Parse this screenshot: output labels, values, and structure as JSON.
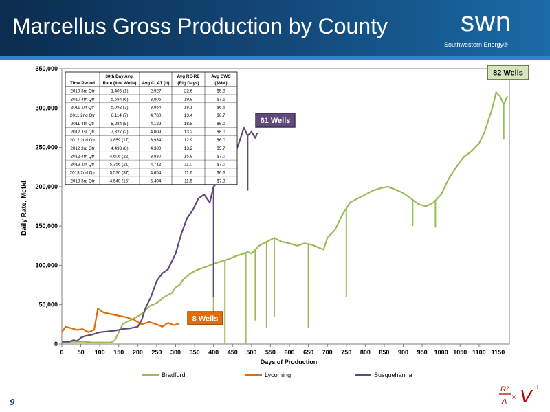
{
  "slide": {
    "title": "Marcellus Gross Production by County",
    "logo_text": "swn",
    "logo_subtext": "Southwestern Energy®",
    "page_number": "9",
    "footer_logo_text": "R²/A × V⁺"
  },
  "chart_data": {
    "type": "line",
    "title": "",
    "xlabel": "Days of Production",
    "ylabel": "Daily Rate, Mcf/d",
    "xlim": [
      0,
      1180
    ],
    "ylim": [
      0,
      350000
    ],
    "x_ticks": [
      0,
      50,
      100,
      150,
      200,
      250,
      300,
      350,
      400,
      450,
      500,
      550,
      600,
      650,
      700,
      750,
      800,
      850,
      900,
      950,
      1000,
      1050,
      1100,
      1150
    ],
    "y_ticks": [
      0,
      50000,
      100000,
      150000,
      200000,
      250000,
      300000,
      350000
    ],
    "y_tick_labels": [
      "0",
      "50,000",
      "100,000",
      "150,000",
      "200,000",
      "250,000",
      "300,000",
      "350,000"
    ],
    "legend_position": "bottom",
    "series": [
      {
        "name": "Bradford",
        "color": "#9bbb59",
        "points": [
          [
            0,
            3000
          ],
          [
            20,
            3000
          ],
          [
            40,
            3000
          ],
          [
            60,
            3000
          ],
          [
            80,
            2000
          ],
          [
            100,
            2000
          ],
          [
            130,
            2000
          ],
          [
            140,
            5000
          ],
          [
            150,
            15000
          ],
          [
            160,
            25000
          ],
          [
            170,
            28000
          ],
          [
            180,
            30000
          ],
          [
            200,
            35000
          ],
          [
            215,
            40000
          ],
          [
            230,
            48000
          ],
          [
            250,
            52000
          ],
          [
            270,
            60000
          ],
          [
            290,
            65000
          ],
          [
            300,
            72000
          ],
          [
            310,
            75000
          ],
          [
            320,
            82000
          ],
          [
            340,
            90000
          ],
          [
            360,
            95000
          ],
          [
            380,
            98000
          ],
          [
            400,
            102000
          ],
          [
            420,
            105000
          ],
          [
            440,
            108000
          ],
          [
            460,
            112000
          ],
          [
            480,
            115000
          ],
          [
            490,
            117000
          ],
          [
            500,
            115000
          ],
          [
            510,
            120000
          ],
          [
            520,
            125000
          ],
          [
            540,
            130000
          ],
          [
            560,
            135000
          ],
          [
            580,
            130000
          ],
          [
            600,
            128000
          ],
          [
            620,
            125000
          ],
          [
            640,
            128000
          ],
          [
            660,
            126000
          ],
          [
            680,
            122000
          ],
          [
            690,
            120000
          ],
          [
            700,
            135000
          ],
          [
            720,
            145000
          ],
          [
            740,
            165000
          ],
          [
            760,
            180000
          ],
          [
            780,
            185000
          ],
          [
            800,
            190000
          ],
          [
            820,
            195000
          ],
          [
            840,
            198000
          ],
          [
            860,
            200000
          ],
          [
            880,
            196000
          ],
          [
            900,
            192000
          ],
          [
            920,
            185000
          ],
          [
            940,
            178000
          ],
          [
            960,
            175000
          ],
          [
            980,
            180000
          ],
          [
            1000,
            190000
          ],
          [
            1020,
            210000
          ],
          [
            1040,
            225000
          ],
          [
            1060,
            238000
          ],
          [
            1080,
            245000
          ],
          [
            1100,
            255000
          ],
          [
            1115,
            270000
          ],
          [
            1125,
            285000
          ],
          [
            1135,
            300000
          ],
          [
            1145,
            320000
          ],
          [
            1155,
            315000
          ],
          [
            1165,
            305000
          ],
          [
            1175,
            315000
          ]
        ],
        "dips": [
          [
            400,
            40000
          ],
          [
            430,
            0
          ],
          [
            485,
            0
          ],
          [
            510,
            30000
          ],
          [
            540,
            20000
          ],
          [
            560,
            35000
          ],
          [
            650,
            20000
          ],
          [
            750,
            60000
          ],
          [
            925,
            150000
          ],
          [
            985,
            148000
          ],
          [
            1165,
            260000
          ]
        ]
      },
      {
        "name": "Lycoming",
        "color": "#e36c0a",
        "points": [
          [
            0,
            15000
          ],
          [
            10,
            22000
          ],
          [
            25,
            20000
          ],
          [
            40,
            18000
          ],
          [
            55,
            19000
          ],
          [
            70,
            15000
          ],
          [
            85,
            18000
          ],
          [
            95,
            45000
          ],
          [
            110,
            40000
          ],
          [
            130,
            38000
          ],
          [
            150,
            36000
          ],
          [
            170,
            34000
          ],
          [
            190,
            31000
          ],
          [
            200,
            28000
          ],
          [
            210,
            25000
          ],
          [
            230,
            28000
          ],
          [
            250,
            25000
          ],
          [
            265,
            22000
          ],
          [
            280,
            27000
          ],
          [
            295,
            24000
          ],
          [
            310,
            26000
          ]
        ]
      },
      {
        "name": "Susquehanna",
        "color": "#604a7b",
        "points": [
          [
            0,
            3000
          ],
          [
            20,
            3000
          ],
          [
            30,
            5000
          ],
          [
            40,
            4000
          ],
          [
            50,
            8000
          ],
          [
            60,
            10000
          ],
          [
            80,
            12000
          ],
          [
            100,
            15000
          ],
          [
            120,
            16000
          ],
          [
            140,
            17000
          ],
          [
            160,
            19000
          ],
          [
            180,
            20000
          ],
          [
            200,
            22000
          ],
          [
            210,
            30000
          ],
          [
            220,
            45000
          ],
          [
            235,
            60000
          ],
          [
            250,
            80000
          ],
          [
            265,
            90000
          ],
          [
            280,
            95000
          ],
          [
            300,
            115000
          ],
          [
            315,
            140000
          ],
          [
            330,
            160000
          ],
          [
            345,
            170000
          ],
          [
            360,
            185000
          ],
          [
            375,
            190000
          ],
          [
            390,
            180000
          ],
          [
            400,
            200000
          ],
          [
            410,
            205000
          ],
          [
            425,
            215000
          ],
          [
            440,
            225000
          ],
          [
            455,
            240000
          ],
          [
            470,
            260000
          ],
          [
            480,
            275000
          ],
          [
            490,
            265000
          ],
          [
            500,
            270000
          ],
          [
            510,
            262000
          ],
          [
            515,
            268000
          ]
        ],
        "dips": [
          [
            400,
            60000
          ],
          [
            490,
            195000
          ]
        ]
      }
    ],
    "annotations": [
      {
        "text": "82 Wells",
        "series": "Bradford",
        "fill": "#d7e4bd",
        "border": "#4f6228"
      },
      {
        "text": "61 Wells",
        "series": "Susquehanna",
        "fill": "#604a7b",
        "border": "#3f3151"
      },
      {
        "text": "8 Wells",
        "series": "Lycoming",
        "fill": "#e36c0a",
        "border": "#974706"
      }
    ],
    "table": {
      "headers": [
        [
          "",
          "30th Day Avg.",
          "",
          "Avg RE-RE",
          "Avg CWC"
        ],
        [
          "Time Period",
          "Rate (# of Wells)",
          "Avg CLAT (ft)",
          "(Rig Days)",
          "($MM)"
        ]
      ],
      "rows": [
        [
          "2010 3rd Qtr",
          "1,405 (1)",
          "2,927",
          "22.6",
          "$5.8"
        ],
        [
          "2010 4th Qtr",
          "5,584 (6)",
          "3,805",
          "19.8",
          "$7.1"
        ],
        [
          "2011 1st Qtr",
          "5,052 (3)",
          "3,864",
          "18.1",
          "$6.6"
        ],
        [
          "2011 2nd Qtr",
          "6,114 (7)",
          "4,780",
          "13.4",
          "$6.7"
        ],
        [
          "2011 4th Qtr",
          "5,284 (5)",
          "4,129",
          "18.8",
          "$6.0"
        ],
        [
          "2012 1st Qtr",
          "7,327 (2)",
          "4,009",
          "13.2",
          "$6.0"
        ],
        [
          "2012 2nd Qtr",
          "3,859 (17)",
          "3,934",
          "12.9",
          "$6.0"
        ],
        [
          "2012 3rd Qtr",
          "4,493 (8)",
          "4,380",
          "13.2",
          "$5.7"
        ],
        [
          "2012 4th Qtr",
          "4,606 (22)",
          "3,830",
          "15.9",
          "$7.0"
        ],
        [
          "2013 1st Qtr",
          "5,356 (21)",
          "4,712",
          "11.0",
          "$7.0"
        ],
        [
          "2013 2nd Qtr",
          "5,530 (37)",
          "4,654",
          "11.6",
          "$6.6"
        ],
        [
          "2013 3rd Qtr",
          "4,540 (15)",
          "5,404",
          "11.5",
          "$7.3"
        ]
      ]
    }
  }
}
